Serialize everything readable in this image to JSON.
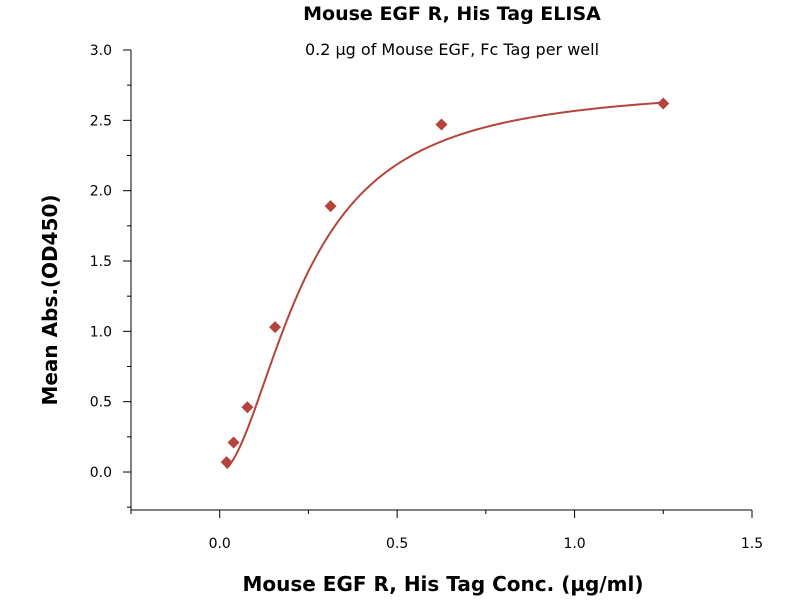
{
  "chart_data": {
    "type": "scatter",
    "title": "Mouse EGF R, His Tag ELISA",
    "subtitle": "0.2 µg of Mouse EGF, Fc Tag per well",
    "xlabel": "Mouse EGF R, His Tag Conc. (µg/ml)",
    "ylabel": "Mean Abs.(OD450)",
    "xlim": [
      -0.25,
      1.5
    ],
    "ylim": [
      -0.27,
      3.0
    ],
    "xticks": [
      "0.0",
      "0.5",
      "1.0",
      "1.5"
    ],
    "xtick_values": [
      0.0,
      0.5,
      1.0,
      1.5
    ],
    "yticks": [
      "0.0",
      "0.5",
      "1.0",
      "1.5",
      "2.0",
      "2.5",
      "3.0"
    ],
    "ytick_values": [
      0.0,
      0.5,
      1.0,
      1.5,
      2.0,
      2.5,
      3.0
    ],
    "grid": false,
    "series": [
      {
        "color": "#b5443c",
        "marker": "diamond",
        "fit": "four-parameter logistic curve",
        "x": [
          0.0195,
          0.039,
          0.078,
          0.156,
          0.3125,
          0.625,
          1.25
        ],
        "y": [
          0.07,
          0.21,
          0.46,
          1.03,
          1.89,
          2.47,
          2.62
        ]
      }
    ]
  }
}
